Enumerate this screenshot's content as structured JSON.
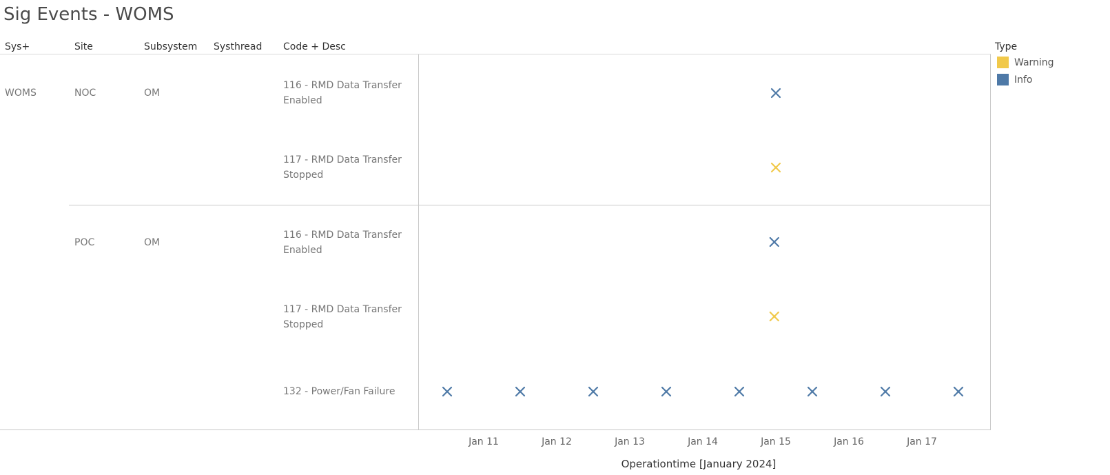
{
  "title": "Sig Events - WOMS",
  "headers": [
    "Sys+",
    "Site",
    "Subsystem",
    "Systhread",
    "Code + Desc"
  ],
  "sys": "WOMS",
  "groups": [
    {
      "site": "NOC",
      "subsystem": "OM",
      "codes": [
        {
          "line1": "116 - RMD Data Transfer",
          "line2": "Enabled"
        },
        {
          "line1": "117 - RMD Data Transfer",
          "line2": "Stopped"
        }
      ]
    },
    {
      "site": "POC",
      "subsystem": "OM",
      "codes": [
        {
          "line1": "116 - RMD Data Transfer",
          "line2": "Enabled"
        },
        {
          "line1": "117 - RMD Data Transfer",
          "line2": "Stopped"
        },
        {
          "line1": "132 - Power/Fan Failure",
          "line2": ""
        }
      ]
    }
  ],
  "legend": {
    "title": "Type",
    "items": [
      {
        "label": "Warning",
        "color": "#f1c94a"
      },
      {
        "label": "Info",
        "color": "#4e79a7"
      }
    ]
  },
  "chart_data": {
    "type": "scatter",
    "xlabel": "Operationtime [January 2024]",
    "x_ticks": [
      "Jan 11",
      "Jan 12",
      "Jan 13",
      "Jan 14",
      "Jan 15",
      "Jan 16",
      "Jan 17"
    ],
    "x_range": [
      "2024-01-10 12:00",
      "2024-01-18 00:00"
    ],
    "rows": [
      "NOC | 116 - RMD Data Transfer Enabled",
      "NOC | 117 - RMD Data Transfer Stopped",
      "POC | 116 - RMD Data Transfer Enabled",
      "POC | 117 - RMD Data Transfer Stopped",
      "POC | 132 - Power/Fan Failure"
    ],
    "points": [
      {
        "row": 0,
        "x": "2024-01-15 00:00",
        "type": "Info"
      },
      {
        "row": 1,
        "x": "2024-01-15 00:00",
        "type": "Warning"
      },
      {
        "row": 2,
        "x": "2024-01-14 23:30",
        "type": "Info"
      },
      {
        "row": 3,
        "x": "2024-01-14 23:30",
        "type": "Warning"
      },
      {
        "row": 4,
        "x": "2024-01-10 12:00",
        "type": "Info"
      },
      {
        "row": 4,
        "x": "2024-01-11 12:00",
        "type": "Info"
      },
      {
        "row": 4,
        "x": "2024-01-12 12:00",
        "type": "Info"
      },
      {
        "row": 4,
        "x": "2024-01-13 12:00",
        "type": "Info"
      },
      {
        "row": 4,
        "x": "2024-01-14 12:00",
        "type": "Info"
      },
      {
        "row": 4,
        "x": "2024-01-15 12:00",
        "type": "Info"
      },
      {
        "row": 4,
        "x": "2024-01-16 12:00",
        "type": "Info"
      },
      {
        "row": 4,
        "x": "2024-01-17 12:00",
        "type": "Info"
      }
    ],
    "grid": false,
    "legend_position": "top-right"
  }
}
